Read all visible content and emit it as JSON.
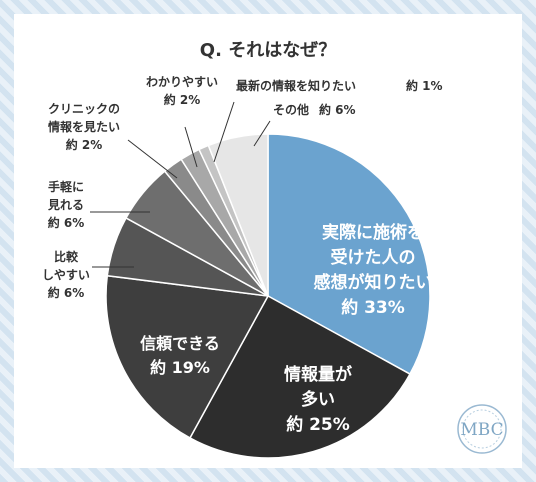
{
  "chart_data": {
    "type": "pie",
    "title": "Q. それはなぜ？",
    "slices": [
      {
        "label_lines": [
          "実際に施術を",
          "受けた人の",
          "感想が知りたい"
        ],
        "value_label": "約 33%",
        "value": 33,
        "color": "#6ba3cf"
      },
      {
        "label_lines": [
          "情報量が",
          "多い"
        ],
        "value_label": "約 25%",
        "value": 25,
        "color": "#2d2d2d"
      },
      {
        "label_lines": [
          "信頼できる"
        ],
        "value_label": "約 19%",
        "value": 19,
        "color": "#3e3e3e"
      },
      {
        "label_lines": [
          "比較",
          "しやすい"
        ],
        "value_label": "約 6%",
        "value": 6,
        "color": "#555555"
      },
      {
        "label_lines": [
          "手軽に",
          "見れる"
        ],
        "value_label": "約 6%",
        "value": 6,
        "color": "#6e6e6e"
      },
      {
        "label_lines": [
          "クリニックの",
          "情報を見たい"
        ],
        "value_label": "約 2%",
        "value": 2,
        "color": "#8a8a8a"
      },
      {
        "label_lines": [
          "わかりやすい"
        ],
        "value_label": "約 2%",
        "value": 2,
        "color": "#a8a8a8"
      },
      {
        "label_lines": [
          "最新の情報を知りたい"
        ],
        "value_label": "約 1%",
        "value": 1,
        "color": "#c4c4c4"
      },
      {
        "label_lines": [
          "その他"
        ],
        "value_label": "約 6%",
        "value": 6,
        "color": "#e6e6e6"
      }
    ]
  },
  "badge": {
    "text": "MBC"
  }
}
